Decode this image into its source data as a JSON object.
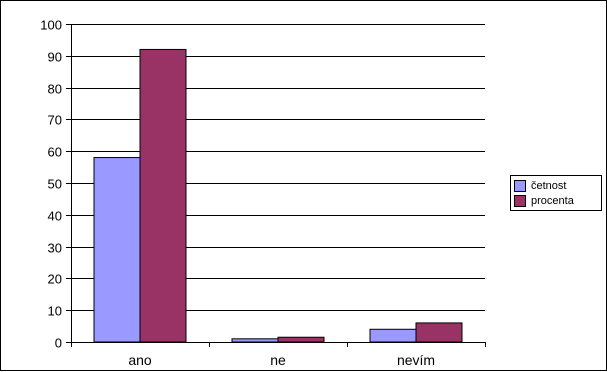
{
  "chart_data": {
    "type": "bar",
    "categories": [
      "ano",
      "ne",
      "nevím"
    ],
    "series": [
      {
        "name": "četnost",
        "values": [
          58,
          1,
          4
        ],
        "color": "#9999FF"
      },
      {
        "name": "procenta",
        "values": [
          92,
          1.5,
          6
        ],
        "color": "#993366"
      }
    ],
    "ylim": [
      0,
      100
    ],
    "yticks": [
      "0",
      "10",
      "20",
      "30",
      "40",
      "50",
      "60",
      "70",
      "80",
      "90",
      "100"
    ],
    "grid": true,
    "legend_position": "right",
    "title": "",
    "xlabel": "",
    "ylabel": ""
  }
}
